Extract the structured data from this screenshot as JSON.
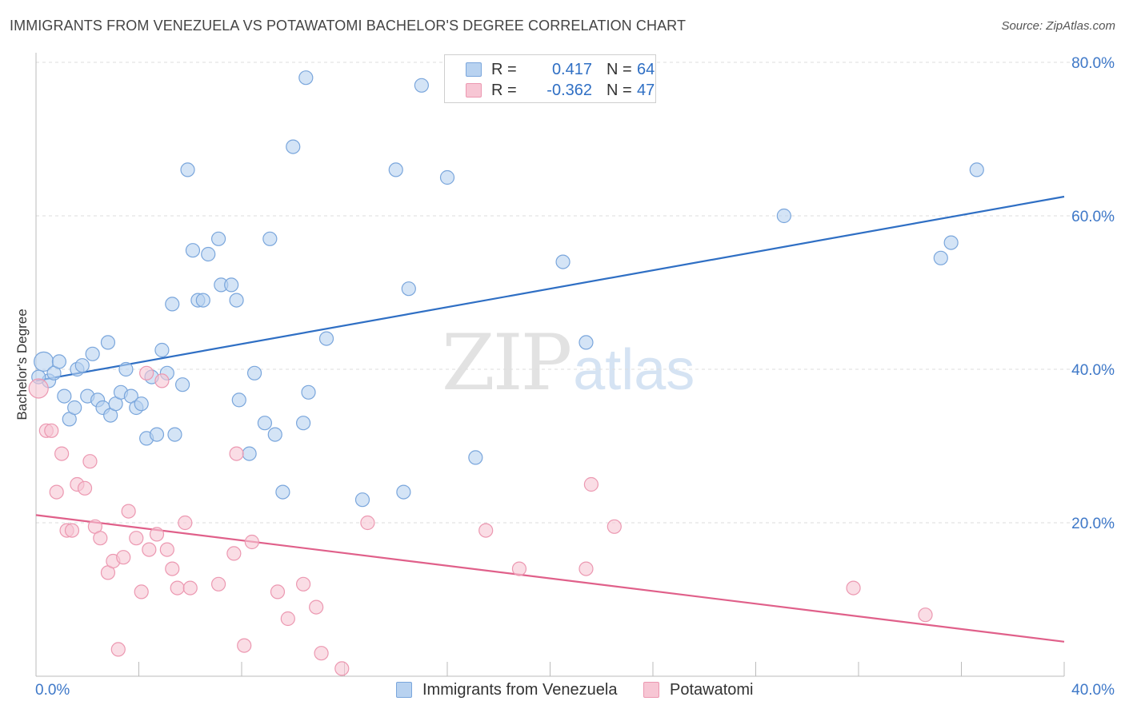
{
  "title": "IMMIGRANTS FROM VENEZUELA VS POTAWATOMI BACHELOR'S DEGREE CORRELATION CHART",
  "source": "Source: ZipAtlas.com",
  "watermark": {
    "zip": "ZIP",
    "atlas": "atlas"
  },
  "legend": {
    "rows": [
      {
        "r_label": "R =",
        "r_value": "0.417",
        "n_label": "N =",
        "n_value": "64"
      },
      {
        "r_label": "R =",
        "r_value": "-0.362",
        "n_label": "N =",
        "n_value": "47"
      }
    ]
  },
  "colors": {
    "blue_fill": "#b8d2f0",
    "blue_stroke": "#7aa6dc",
    "blue_line": "#2f6fc4",
    "pink_fill": "#f7c6d4",
    "pink_stroke": "#ec98b1",
    "pink_line": "#e0608a",
    "tick_text": "#3e78c8",
    "grid": "#dddddd"
  },
  "chart_data": {
    "type": "scatter",
    "title": "IMMIGRANTS FROM VENEZUELA VS POTAWATOMI BACHELOR'S DEGREE CORRELATION CHART",
    "xlabel": "",
    "ylabel": "Bachelor's Degree",
    "xlim": [
      0,
      40
    ],
    "ylim": [
      0,
      80
    ],
    "x_tick_labels": [
      "0.0%",
      "40.0%"
    ],
    "y_tick_labels": [
      "20.0%",
      "40.0%",
      "60.0%",
      "80.0%"
    ],
    "y_ticks": [
      20,
      40,
      60,
      80
    ],
    "grid": true,
    "legend_placement": "bottom",
    "series": [
      {
        "name": "Immigrants from Venezuela",
        "r": 0.417,
        "n": 64,
        "trend": [
          [
            0,
            38.5
          ],
          [
            40,
            62.5
          ]
        ],
        "points": [
          [
            0.3,
            41.0
          ],
          [
            0.5,
            38.5
          ],
          [
            0.7,
            39.5
          ],
          [
            0.9,
            41.0
          ],
          [
            1.1,
            36.5
          ],
          [
            1.3,
            33.5
          ],
          [
            1.5,
            35.0
          ],
          [
            1.6,
            40.0
          ],
          [
            1.8,
            40.5
          ],
          [
            2.0,
            36.5
          ],
          [
            2.2,
            42.0
          ],
          [
            2.4,
            36.0
          ],
          [
            2.6,
            35.0
          ],
          [
            2.8,
            43.5
          ],
          [
            2.9,
            34.0
          ],
          [
            3.1,
            35.5
          ],
          [
            3.3,
            37.0
          ],
          [
            3.5,
            40.0
          ],
          [
            3.7,
            36.5
          ],
          [
            3.9,
            35.0
          ],
          [
            4.1,
            35.5
          ],
          [
            4.3,
            31.0
          ],
          [
            4.5,
            39.0
          ],
          [
            4.7,
            31.5
          ],
          [
            4.9,
            42.5
          ],
          [
            5.1,
            39.5
          ],
          [
            5.3,
            48.5
          ],
          [
            5.4,
            31.5
          ],
          [
            5.7,
            38.0
          ],
          [
            5.9,
            66.0
          ],
          [
            6.1,
            55.5
          ],
          [
            6.3,
            49.0
          ],
          [
            6.5,
            49.0
          ],
          [
            6.7,
            55.0
          ],
          [
            7.1,
            57.0
          ],
          [
            7.2,
            51.0
          ],
          [
            7.6,
            51.0
          ],
          [
            7.8,
            49.0
          ],
          [
            7.9,
            36.0
          ],
          [
            8.3,
            29.0
          ],
          [
            8.5,
            39.5
          ],
          [
            8.9,
            33.0
          ],
          [
            9.1,
            57.0
          ],
          [
            9.3,
            31.5
          ],
          [
            9.6,
            24.0
          ],
          [
            10.0,
            69.0
          ],
          [
            10.4,
            33.0
          ],
          [
            10.5,
            78.0
          ],
          [
            10.6,
            37.0
          ],
          [
            11.3,
            44.0
          ],
          [
            12.7,
            23.0
          ],
          [
            14.0,
            66.0
          ],
          [
            14.3,
            24.0
          ],
          [
            14.5,
            50.5
          ],
          [
            15.0,
            77.0
          ],
          [
            16.0,
            65.0
          ],
          [
            17.1,
            28.5
          ],
          [
            20.5,
            54.0
          ],
          [
            21.4,
            43.5
          ],
          [
            29.1,
            60.0
          ],
          [
            35.2,
            54.5
          ],
          [
            35.6,
            56.5
          ],
          [
            36.6,
            66.0
          ],
          [
            0.1,
            39.0
          ]
        ]
      },
      {
        "name": "Potawatomi",
        "r": -0.362,
        "n": 47,
        "trend": [
          [
            0,
            21.0
          ],
          [
            40,
            4.5
          ]
        ],
        "points": [
          [
            0.1,
            37.5
          ],
          [
            0.4,
            32.0
          ],
          [
            0.6,
            32.0
          ],
          [
            0.8,
            24.0
          ],
          [
            1.0,
            29.0
          ],
          [
            1.2,
            19.0
          ],
          [
            1.4,
            19.0
          ],
          [
            1.6,
            25.0
          ],
          [
            1.9,
            24.5
          ],
          [
            2.1,
            28.0
          ],
          [
            2.3,
            19.5
          ],
          [
            2.5,
            18.0
          ],
          [
            2.8,
            13.5
          ],
          [
            3.0,
            15.0
          ],
          [
            3.2,
            3.5
          ],
          [
            3.4,
            15.5
          ],
          [
            3.6,
            21.5
          ],
          [
            3.9,
            18.0
          ],
          [
            4.1,
            11.0
          ],
          [
            4.3,
            39.5
          ],
          [
            4.4,
            16.5
          ],
          [
            4.7,
            18.5
          ],
          [
            4.9,
            38.5
          ],
          [
            5.1,
            16.5
          ],
          [
            5.3,
            14.0
          ],
          [
            5.5,
            11.5
          ],
          [
            5.8,
            20.0
          ],
          [
            6.0,
            11.5
          ],
          [
            7.1,
            12.0
          ],
          [
            7.7,
            16.0
          ],
          [
            7.8,
            29.0
          ],
          [
            8.1,
            4.0
          ],
          [
            8.4,
            17.5
          ],
          [
            9.4,
            11.0
          ],
          [
            9.8,
            7.5
          ],
          [
            10.4,
            12.0
          ],
          [
            10.9,
            9.0
          ],
          [
            11.1,
            3.0
          ],
          [
            11.9,
            1.0
          ],
          [
            12.9,
            20.0
          ],
          [
            17.5,
            19.0
          ],
          [
            18.8,
            14.0
          ],
          [
            21.4,
            14.0
          ],
          [
            21.6,
            25.0
          ],
          [
            22.5,
            19.5
          ],
          [
            31.8,
            11.5
          ],
          [
            34.6,
            8.0
          ]
        ]
      }
    ]
  }
}
